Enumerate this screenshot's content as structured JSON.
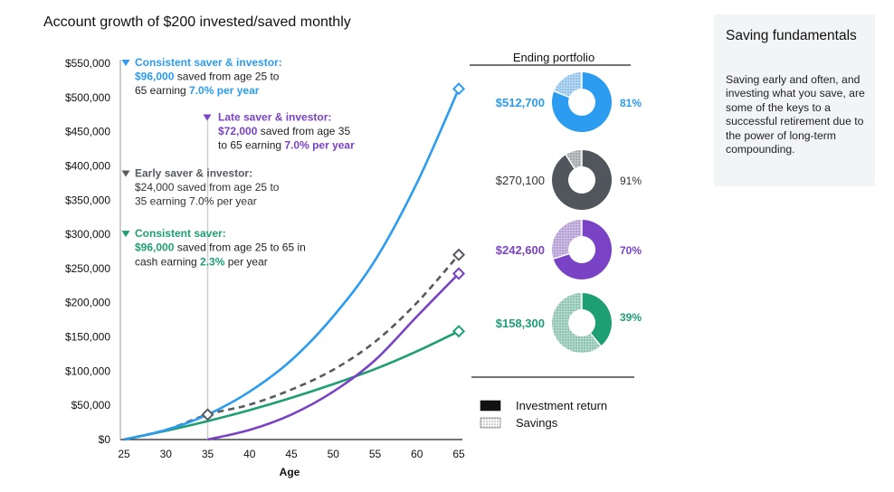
{
  "chart_data": {
    "type": "line",
    "title": "Account growth of $200 invested/saved monthly",
    "xlabel": "Age",
    "ylabel": "",
    "xlim": [
      25,
      65
    ],
    "ylim": [
      0,
      550000
    ],
    "x_ticks": [
      "25",
      "30",
      "35",
      "40",
      "45",
      "50",
      "55",
      "60",
      "65"
    ],
    "y_ticks": [
      "$0",
      "$50,000",
      "$100,000",
      "$150,000",
      "$200,000",
      "$250,000",
      "$300,000",
      "$350,000",
      "$400,000",
      "$450,000",
      "$500,000",
      "$550,000"
    ],
    "y_tick_values": [
      0,
      50000,
      100000,
      150000,
      200000,
      250000,
      300000,
      350000,
      400000,
      450000,
      500000,
      550000
    ],
    "series": [
      {
        "name": "Consistent saver & investor",
        "color": "#2b9cf0",
        "dashed": false,
        "x": [
          25,
          30,
          35,
          40,
          45,
          50,
          55,
          60,
          65
        ],
        "y": [
          0,
          14000,
          36500,
          70000,
          116000,
          180000,
          262000,
          375000,
          512700
        ]
      },
      {
        "name": "Late saver & investor",
        "color": "#7a42c4",
        "dashed": false,
        "x": [
          35,
          40,
          45,
          50,
          55,
          60,
          65
        ],
        "y": [
          0,
          14000,
          36500,
          70000,
          116000,
          180000,
          242600
        ]
      },
      {
        "name": "Early saver & investor",
        "color": "#555b61",
        "dashed": true,
        "x": [
          25,
          30,
          35,
          40,
          45,
          50,
          55,
          60,
          65
        ],
        "y": [
          0,
          14000,
          36500,
          51000,
          73000,
          102000,
          143000,
          200000,
          270100
        ]
      },
      {
        "name": "Consistent saver",
        "color": "#1e9e73",
        "dashed": false,
        "x": [
          25,
          30,
          35,
          40,
          45,
          50,
          55,
          60,
          65
        ],
        "y": [
          0,
          12800,
          27000,
          43000,
          61000,
          81000,
          103000,
          129000,
          158300
        ]
      }
    ],
    "annotations": [
      {
        "anchor_value": 550000,
        "color": "#2b9cf0",
        "lines": [
          [
            {
              "t": "Consistent saver & investor:",
              "c": "#2b9cf0",
              "b": true
            }
          ],
          [
            {
              "t": "$96,000",
              "c": "#2b9cf0",
              "b": true
            },
            {
              "t": " saved from age 25 to",
              "c": "#222",
              "b": false
            }
          ],
          [
            {
              "t": "65 earning ",
              "c": "#222",
              "b": false
            },
            {
              "t": "7.0% per year",
              "c": "#2b9cf0",
              "b": true
            }
          ]
        ]
      },
      {
        "anchor_value": 470000,
        "color": "#7a42c4",
        "lines": [
          [
            {
              "t": "Late saver & investor:",
              "c": "#7a42c4",
              "b": true
            }
          ],
          [
            {
              "t": "$72,000",
              "c": "#7a42c4",
              "b": true
            },
            {
              "t": " saved from age 35",
              "c": "#222",
              "b": false
            }
          ],
          [
            {
              "t": "to 65 earning ",
              "c": "#222",
              "b": false
            },
            {
              "t": "7.0% per year",
              "c": "#7a42c4",
              "b": true
            }
          ]
        ]
      },
      {
        "anchor_value": 388000,
        "color": "#555b61",
        "lines": [
          [
            {
              "t": "Early saver & investor:",
              "c": "#555b61",
              "b": true
            }
          ],
          [
            {
              "t": "$24,000 saved from age 25 to",
              "c": "#333",
              "b": false
            }
          ],
          [
            {
              "t": "35 earning 7.0% per year",
              "c": "#333",
              "b": false
            }
          ]
        ]
      },
      {
        "anchor_value": 300000,
        "color": "#1e9e73",
        "lines": [
          [
            {
              "t": "Consistent saver:",
              "c": "#1e9e73",
              "b": true
            }
          ],
          [
            {
              "t": "$96,000",
              "c": "#1e9e73",
              "b": true
            },
            {
              "t": " saved from age 25 to 65 in",
              "c": "#222",
              "b": false
            }
          ],
          [
            {
              "t": "cash earning ",
              "c": "#222",
              "b": false
            },
            {
              "t": "2.3%",
              "c": "#1e9e73",
              "b": true
            },
            {
              "t": " per year",
              "c": "#222",
              "b": false
            }
          ]
        ]
      }
    ],
    "ending_portfolio": {
      "title": "Ending portfolio",
      "items": [
        {
          "value": "$512,700",
          "pct_label": "81%",
          "investment_pct": 81,
          "color": "#2b9cf0",
          "label_color": "#2b9cf0",
          "bold": true
        },
        {
          "value": "$270,100",
          "pct_label": "91%",
          "investment_pct": 91,
          "color": "#50565c",
          "label_color": "#333333",
          "bold": false
        },
        {
          "value": "$242,600",
          "pct_label": "70%",
          "investment_pct": 70,
          "color": "#7a42c4",
          "label_color": "#7a42c4",
          "bold": true
        },
        {
          "value": "$158,300",
          "pct_label": "39%",
          "investment_pct": 39,
          "color": "#1e9e73",
          "label_color": "#1e9e73",
          "bold": true
        }
      ]
    },
    "legend": [
      {
        "label": "Investment return",
        "style": "solid"
      },
      {
        "label": "Savings",
        "style": "dotted"
      }
    ]
  },
  "sidebar": {
    "heading": "Saving fundamentals",
    "body": "Saving early and often, and investing what you save, are some of the keys to a successful retirement due to the power of long-term compounding."
  }
}
